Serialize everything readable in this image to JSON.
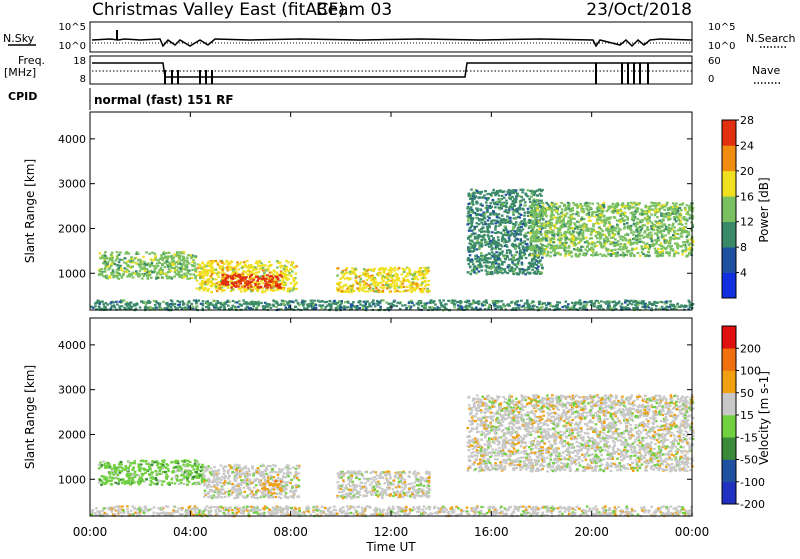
{
  "header": {
    "title": "Christmas Valley East (fitACF)",
    "beam": "Beam 03",
    "date": "23/Oct/2018"
  },
  "control": {
    "nsky_label": "N.Sky",
    "nsearch_label": "N.Search",
    "freq_label_1": "Freq.",
    "freq_label_2": "[MHz]",
    "nave_label": "Nave",
    "cpid_label": "CPID",
    "cpid_value": "normal (fast) 151 RF",
    "noise_ticks_left": [
      "10^5",
      "10^0"
    ],
    "noise_ticks_right": [
      "10^5",
      "10^0"
    ],
    "freq_ticks": [
      "18",
      "8"
    ],
    "nave_ticks": [
      "60",
      "0"
    ]
  },
  "xaxis": {
    "label": "Time UT",
    "ticks": [
      "00:00",
      "04:00",
      "08:00",
      "12:00",
      "16:00",
      "20:00",
      "00:00"
    ]
  },
  "chart_data": [
    {
      "type": "heatmap",
      "quantity": "Power",
      "ylabel": "Slant Range [km]",
      "yticks": [
        1000,
        2000,
        3000,
        4000
      ],
      "ylim": [
        180,
        4600
      ],
      "xlim_hours": [
        0,
        24
      ],
      "colorbar_title": "Power [dB]",
      "colorbar_ticks": [
        "4",
        "8",
        "12",
        "16",
        "20",
        "24",
        "28"
      ],
      "colors": [
        "#1030e0",
        "#2050a0",
        "#3a8a6a",
        "#7ac060",
        "#f0e020",
        "#f08c10",
        "#e03010"
      ],
      "regions": [
        {
          "t0": 0.3,
          "t1": 4.2,
          "r0": 900,
          "r1": 1500,
          "level": 3
        },
        {
          "t0": 4.2,
          "t1": 8.2,
          "r0": 600,
          "r1": 1300,
          "level": 4
        },
        {
          "t0": 5.2,
          "t1": 7.6,
          "r0": 700,
          "r1": 1000,
          "level": 6
        },
        {
          "t0": 9.8,
          "t1": 13.5,
          "r0": 600,
          "r1": 1150,
          "level": 4
        },
        {
          "t0": 15.0,
          "t1": 18.0,
          "r0": 1000,
          "r1": 2900,
          "level": 2
        },
        {
          "t0": 17.5,
          "t1": 24.0,
          "r0": 1400,
          "r1": 2600,
          "level": 3
        },
        {
          "t0": 0.0,
          "t1": 24.0,
          "r0": 200,
          "r1": 420,
          "level": 2
        }
      ]
    },
    {
      "type": "heatmap",
      "quantity": "Velocity",
      "ylabel": "Slant Range [km]",
      "yticks": [
        1000,
        2000,
        3000,
        4000
      ],
      "ylim": [
        180,
        4600
      ],
      "xlim_hours": [
        0,
        24
      ],
      "colorbar_title": "Velocity [m s-1]",
      "colorbar_ticks": [
        "200",
        "100",
        "50",
        "15",
        "-15",
        "-50",
        "-100",
        "-200"
      ],
      "colors": [
        "#2030c0",
        "#2050a0",
        "#3a8a3a",
        "#70d040",
        "#c8c8c8",
        "#f0a010",
        "#f07010",
        "#e01010"
      ],
      "regions": [
        {
          "t0": 0.3,
          "t1": 4.5,
          "r0": 900,
          "r1": 1450,
          "category": 3
        },
        {
          "t0": 4.5,
          "t1": 8.3,
          "r0": 600,
          "r1": 1350,
          "category": 4
        },
        {
          "t0": 6.8,
          "t1": 7.6,
          "r0": 700,
          "r1": 1000,
          "category": 5
        },
        {
          "t0": 9.8,
          "t1": 13.5,
          "r0": 600,
          "r1": 1200,
          "category": 4
        },
        {
          "t0": 15.0,
          "t1": 24.0,
          "r0": 1200,
          "r1": 2900,
          "category": 4
        },
        {
          "t0": 0.0,
          "t1": 24.0,
          "r0": 200,
          "r1": 420,
          "category": 4
        }
      ]
    }
  ]
}
